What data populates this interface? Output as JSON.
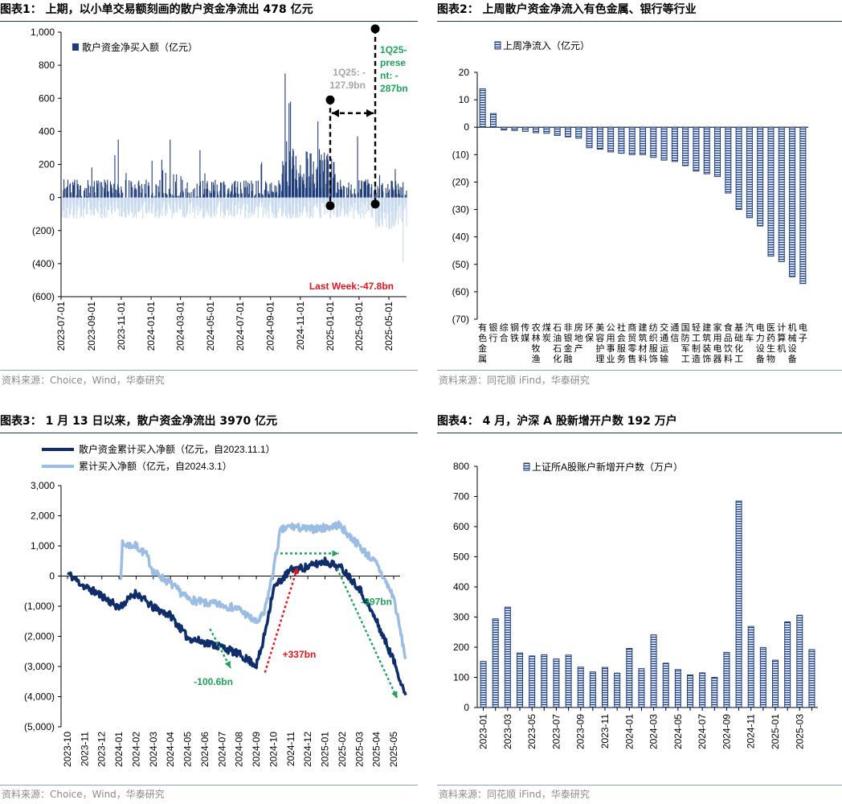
{
  "panels": {
    "p1": {
      "title": "图表1：  上期，以小单交易额刻画的散户资金净流出 478 亿元",
      "source": "资料来源：Choice，Wind，华泰研究"
    },
    "p2": {
      "title": "图表2：  上周散户资金净流入有色金属、银行等行业",
      "source": "资料来源：同花顺 iFind，华泰研究"
    },
    "p3": {
      "title": "图表3：  1 月 13 日以来，散户资金净流出 3970 亿元",
      "source": "资料来源：Choice，Wind，华泰研究"
    },
    "p4": {
      "title": "图表4：  4 月，沪深 A 股新增开户数 192 万户",
      "source": "资料来源：同花顺 iFind，华泰研究"
    }
  },
  "chart_data": [
    {
      "id": "c1",
      "type": "bar",
      "series": [
        {
          "name": "散户资金净买入额（亿元）",
          "color": "#1f3d7a",
          "negative_color": "#c9daf0"
        }
      ],
      "ylim": [
        -600,
        1000
      ],
      "yticks": [
        -600,
        -400,
        -200,
        0,
        200,
        400,
        600,
        800,
        1000
      ],
      "ytick_labels": [
        "(600)",
        "(400)",
        "(200)",
        "0",
        "200",
        "400",
        "600",
        "800",
        "1,000"
      ],
      "xtick_labels": [
        "2023-07-01",
        "2023-09-01",
        "2023-11-01",
        "2024-01-01",
        "2024-03-01",
        "2024-05-01",
        "2024-07-01",
        "2024-09-01",
        "2024-11-01",
        "2025-01-01",
        "2025-03-01",
        "2025-05-01"
      ],
      "x_range": [
        "2023-07-01",
        "2025-06-06"
      ],
      "spikes": [
        {
          "date": "2023-10-25",
          "value": 350
        },
        {
          "date": "2024-02-08",
          "value": 350
        },
        {
          "date": "2024-09-30",
          "value": 750
        },
        {
          "date": "2024-10-08",
          "value": 570
        },
        {
          "date": "2024-10-11",
          "value": 580
        },
        {
          "date": "2024-12-06",
          "value": 460
        },
        {
          "date": "2025-02-25",
          "value": 370
        }
      ],
      "min_value": {
        "date": "2025-05-29",
        "value": -390
      },
      "annotations": {
        "left_label": "1Q25: -127.9bn",
        "left_label_lines": [
          "1Q25: -",
          "127.9bn"
        ],
        "right_label": "1Q25-present: -287bn",
        "right_label_lines": [
          "1Q25-",
          "prese",
          "nt: -",
          "287bn"
        ],
        "last_week": "Last Week:-47.8bn",
        "marker_left": {
          "date": "2025-01-01",
          "top": 590,
          "bottom": -50
        },
        "marker_right": {
          "date": "2025-04-03",
          "top": 1020,
          "bottom": -40
        }
      }
    },
    {
      "id": "c2",
      "type": "bar",
      "series": [
        {
          "name": "上周净流入（亿元）"
        }
      ],
      "ylim": [
        -70,
        20
      ],
      "yticks": [
        -70,
        -60,
        -50,
        -40,
        -30,
        -20,
        -10,
        0,
        10,
        20
      ],
      "ytick_labels": [
        "(70)",
        "(60)",
        "(50)",
        "(40)",
        "(30)",
        "(20)",
        "(10)",
        "0",
        "10",
        "20"
      ],
      "categories": [
        "有色金属",
        "银行",
        "综合",
        "钢铁",
        "传媒",
        "农林牧渔",
        "煤炭",
        "石油石化",
        "非银金融",
        "房地产",
        "环保",
        "美容护理",
        "公用事业",
        "社会服务",
        "商贸零售",
        "建筑材料",
        "纺织服饰",
        "交通运输",
        "通信",
        "国防军工",
        "轻工制造",
        "建筑装饰",
        "家用电器",
        "食品饮料",
        "基础化工",
        "汽车",
        "电力设备",
        "医药生物",
        "计算机",
        "机械设备",
        "电子"
      ],
      "values": [
        14,
        5,
        -1,
        -1.2,
        -1.5,
        -2,
        -2.2,
        -3,
        -3.5,
        -4,
        -7.5,
        -8,
        -9,
        -9.5,
        -10,
        -10,
        -11,
        -12,
        -12.5,
        -14,
        -16,
        -17,
        -18,
        -24,
        -30,
        -33,
        -36,
        -47,
        -49,
        -54.5,
        -57
      ]
    },
    {
      "id": "c3",
      "type": "line",
      "series": [
        {
          "name": "散户资金累计买入净额（亿元，自2023.11.1）",
          "color": "#0f2d6b"
        },
        {
          "name": "累计买入净额（亿元，自2024.3.1）",
          "color": "#9cbde3"
        }
      ],
      "ylim": [
        -5000,
        3000
      ],
      "yticks": [
        -5000,
        -4000,
        -3000,
        -2000,
        -1000,
        0,
        1000,
        2000,
        3000
      ],
      "ytick_labels": [
        "(5,000)",
        "(4,000)",
        "(3,000)",
        "(2,000)",
        "(1,000)",
        "0",
        "1,000",
        "2,000",
        "3,000"
      ],
      "xtick_labels": [
        "2023-10",
        "2023-11",
        "2023-12",
        "2024-01",
        "2024-02",
        "2024-03",
        "2024-04",
        "2024-05",
        "2024-06",
        "2024-07",
        "2024-08",
        "2024-09",
        "2024-10",
        "2024-11",
        "2024-12",
        "2025-01",
        "2025-02",
        "2025-03",
        "2025-04",
        "2025-05"
      ],
      "annotations": {
        "a1": "-100.6bn",
        "a2": "+337bn",
        "a3": "-397bn"
      }
    },
    {
      "id": "c4",
      "type": "bar",
      "series": [
        {
          "name": "上证所A股账户新增开户数（万户）"
        }
      ],
      "ylim": [
        0,
        800
      ],
      "yticks": [
        0,
        100,
        200,
        300,
        400,
        500,
        600,
        700,
        800
      ],
      "ytick_labels": [
        "0",
        "100",
        "200",
        "300",
        "400",
        "500",
        "600",
        "700",
        "800"
      ],
      "categories": [
        "2023-01",
        "2023-02",
        "2023-03",
        "2023-04",
        "2023-05",
        "2023-06",
        "2023-07",
        "2023-08",
        "2023-09",
        "2023-10",
        "2023-11",
        "2023-12",
        "2024-01",
        "2024-02",
        "2024-03",
        "2024-04",
        "2024-05",
        "2024-06",
        "2024-07",
        "2024-08",
        "2024-09",
        "2024-10",
        "2024-11",
        "2024-12",
        "2025-01",
        "2025-02",
        "2025-03",
        "2025-04"
      ],
      "xtick_labels": [
        "2023-01",
        "2023-03",
        "2023-05",
        "2023-07",
        "2023-09",
        "2023-11",
        "2024-01",
        "2024-03",
        "2024-05",
        "2024-07",
        "2024-09",
        "2024-11",
        "2025-01",
        "2025-03"
      ],
      "values": [
        153,
        294,
        333,
        181,
        171,
        175,
        161,
        174,
        134,
        118,
        133,
        114,
        196,
        129,
        241,
        147,
        126,
        108,
        115,
        100,
        183,
        685,
        269,
        199,
        157,
        284,
        306,
        192
      ]
    }
  ]
}
